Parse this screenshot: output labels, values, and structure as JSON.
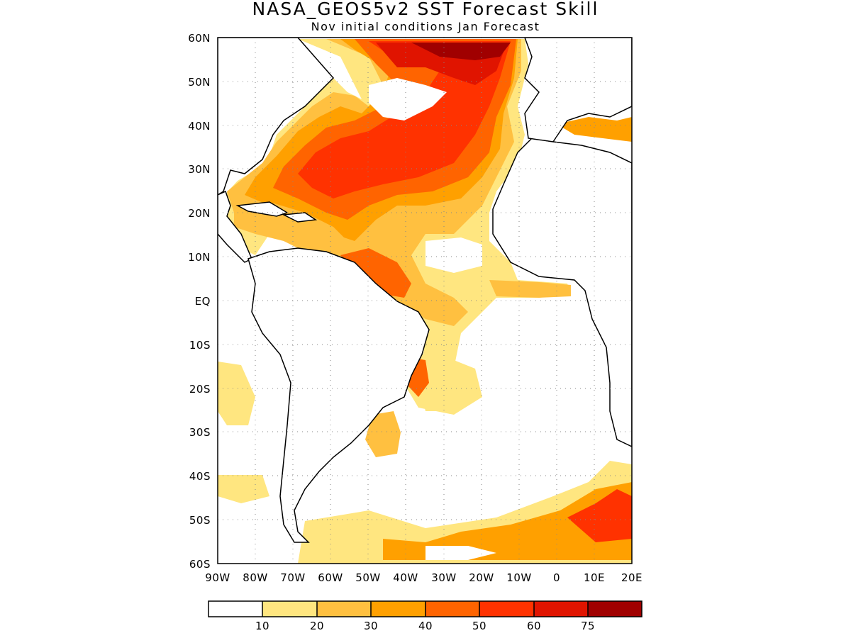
{
  "title": "NASA_GEOS5v2 SST Forecast Skill",
  "subtitle": "Nov initial conditions  Jan Forecast",
  "axes": {
    "x_ticks": [
      "90W",
      "80W",
      "70W",
      "60W",
      "50W",
      "40W",
      "30W",
      "20W",
      "10W",
      "0",
      "10E",
      "20E"
    ],
    "y_ticks": [
      "60N",
      "50N",
      "40N",
      "30N",
      "20N",
      "10N",
      "EQ",
      "10S",
      "20S",
      "30S",
      "40S",
      "50S",
      "60S"
    ],
    "lon_range": [
      -90,
      20
    ],
    "lat_range": [
      -60,
      60
    ],
    "grid": "dotted"
  },
  "colorbar": {
    "labels": [
      "10",
      "20",
      "30",
      "40",
      "50",
      "60",
      "75"
    ],
    "colors": [
      "#ffffff",
      "#ffe680",
      "#ffc040",
      "#ffa000",
      "#ff6400",
      "#ff3200",
      "#e01400",
      "#a00000"
    ]
  }
}
